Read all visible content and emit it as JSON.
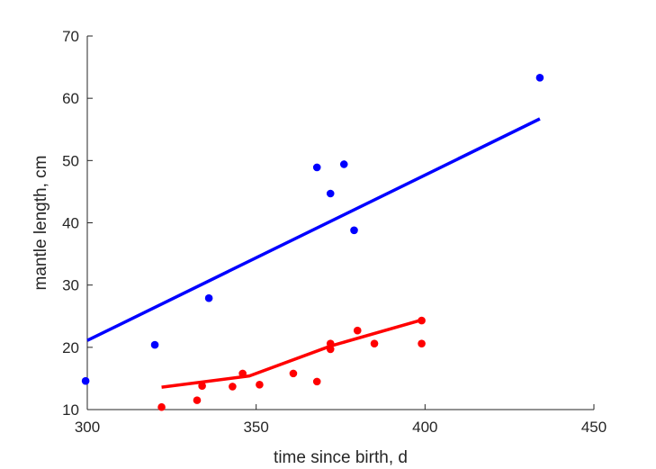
{
  "chart_data": {
    "type": "scatter",
    "title": "",
    "xlabel": "time since birth, d",
    "ylabel": "mantle length, cm",
    "xlim": [
      300,
      450
    ],
    "ylim": [
      10,
      70
    ],
    "xticks": [
      300,
      350,
      400,
      450
    ],
    "yticks": [
      10,
      20,
      30,
      40,
      50,
      60,
      70
    ],
    "grid": false,
    "legend": "none",
    "series": [
      {
        "kind": "points",
        "color": "#0000ff",
        "x": [
          299.5,
          320,
          336,
          368,
          372,
          376,
          379,
          434
        ],
        "y": [
          14.6,
          20.4,
          27.9,
          48.9,
          44.7,
          49.4,
          38.8,
          63.3
        ]
      },
      {
        "kind": "line",
        "color": "#0000ff",
        "x": [
          300,
          434
        ],
        "y": [
          21.1,
          56.7
        ]
      },
      {
        "kind": "points",
        "color": "#ff0000",
        "x": [
          322,
          332.5,
          334,
          343,
          346,
          351,
          361,
          368,
          372,
          372,
          380,
          385,
          399,
          399
        ],
        "y": [
          10.4,
          11.5,
          13.8,
          13.7,
          15.8,
          14.0,
          15.8,
          14.5,
          19.7,
          20.6,
          22.7,
          20.6,
          24.3,
          20.6
        ]
      },
      {
        "kind": "line",
        "color": "#ff0000",
        "x": [
          322,
          348,
          372,
          399
        ],
        "y": [
          13.6,
          15.4,
          20.2,
          24.4
        ]
      }
    ]
  }
}
